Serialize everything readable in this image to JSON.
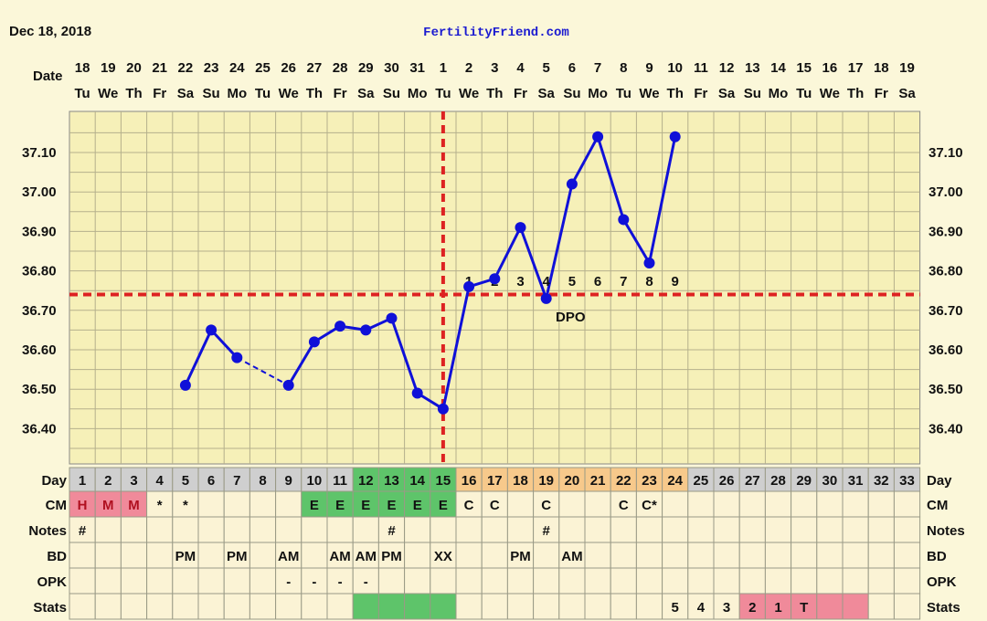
{
  "header": {
    "date": "Dec 18, 2018",
    "site": "FertilityFriend.com",
    "date_label": "Date"
  },
  "colors": {
    "page_bg": "#fbf7d9",
    "plot_bg": "#f6f0b8",
    "grid": "#b5b08c",
    "line": "#1010d8",
    "coverline": "#dd2222",
    "green": "#5ec46a",
    "pink": "#f08a9a",
    "orange": "#f7c98b",
    "gray": "#cfcfcf",
    "cell_bg": "#fbf3d5"
  },
  "chart_data": {
    "type": "line",
    "title": "",
    "xlabel": "Date",
    "ylabel": "",
    "ylim": [
      36.32,
      37.2
    ],
    "yticks": [
      "36.40",
      "36.50",
      "36.60",
      "36.70",
      "36.80",
      "36.90",
      "37.00",
      "37.10"
    ],
    "dates": [
      "18",
      "19",
      "20",
      "21",
      "22",
      "23",
      "24",
      "25",
      "26",
      "27",
      "28",
      "29",
      "30",
      "31",
      "1",
      "2",
      "3",
      "4",
      "5",
      "6",
      "7",
      "8",
      "9",
      "10",
      "11",
      "12",
      "13",
      "14",
      "15",
      "16",
      "17",
      "18",
      "19"
    ],
    "weekdays": [
      "Tu",
      "We",
      "Th",
      "Fr",
      "Sa",
      "Su",
      "Mo",
      "Tu",
      "We",
      "Th",
      "Fr",
      "Sa",
      "Su",
      "Mo",
      "Tu",
      "We",
      "Th",
      "Fr",
      "Sa",
      "Su",
      "Mo",
      "Tu",
      "We",
      "Th",
      "Fr",
      "Sa",
      "Su",
      "Mo",
      "Tu",
      "We",
      "Th",
      "Fr",
      "Sa"
    ],
    "temperatures": [
      null,
      null,
      null,
      null,
      36.51,
      36.65,
      36.58,
      null,
      36.51,
      36.62,
      36.66,
      36.65,
      36.68,
      36.49,
      36.45,
      36.76,
      36.78,
      36.91,
      36.73,
      37.02,
      37.14,
      36.93,
      36.82,
      37.14,
      null,
      null,
      null,
      null,
      null,
      null,
      null,
      null,
      null
    ],
    "coverline": 36.74,
    "ovulation_day_index": 14,
    "dpo_labels": [
      "1",
      "2",
      "3",
      "4",
      "5",
      "6",
      "7",
      "8",
      "9"
    ],
    "dpo_start_index": 15,
    "dpo_text": "DPO",
    "grid": true,
    "rows": [
      {
        "label": "Day",
        "cells": [
          "1",
          "2",
          "3",
          "4",
          "5",
          "6",
          "7",
          "8",
          "9",
          "10",
          "11",
          "12",
          "13",
          "14",
          "15",
          "16",
          "17",
          "18",
          "19",
          "20",
          "21",
          "22",
          "23",
          "24",
          "25",
          "26",
          "27",
          "28",
          "29",
          "30",
          "31",
          "32",
          "33"
        ]
      },
      {
        "label": "CM",
        "cells": [
          "H",
          "M",
          "M",
          "*",
          "*",
          "",
          "",
          "",
          "",
          "E",
          "E",
          "E",
          "E",
          "E",
          "E",
          "C",
          "C",
          "",
          "C",
          "",
          "",
          "C",
          "C*",
          "",
          "",
          "",
          "",
          "",
          "",
          "",
          "",
          "",
          ""
        ]
      },
      {
        "label": "Notes",
        "cells": [
          "#",
          "",
          "",
          "",
          "",
          "",
          "",
          "",
          "",
          "",
          "",
          "",
          "#",
          "",
          "",
          "",
          "",
          "",
          "#",
          "",
          "",
          "",
          "",
          "",
          "",
          "",
          "",
          "",
          "",
          "",
          "",
          "",
          ""
        ]
      },
      {
        "label": "BD",
        "cells": [
          "",
          "",
          "",
          "",
          "PM",
          "",
          "PM",
          "",
          "AM",
          "",
          "AM",
          "AM",
          "PM",
          "",
          "XX",
          "",
          "",
          "PM",
          "",
          "AM",
          "",
          "",
          "",
          "",
          "",
          "",
          "",
          "",
          "",
          "",
          "",
          "",
          ""
        ]
      },
      {
        "label": "OPK",
        "cells": [
          "",
          "",
          "",
          "",
          "",
          "",
          "",
          "",
          "-",
          "-",
          "-",
          "-",
          "",
          "",
          "",
          "",
          "",
          "",
          "",
          "",
          "",
          "",
          "",
          "",
          "",
          "",
          "",
          "",
          "",
          "",
          "",
          "",
          ""
        ]
      },
      {
        "label": "Stats",
        "cells": [
          "",
          "",
          "",
          "",
          "",
          "",
          "",
          "",
          "",
          "",
          "",
          "",
          "",
          "",
          "",
          "",
          "",
          "",
          "",
          "",
          "",
          "",
          "",
          "5",
          "4",
          "3",
          "2",
          "1",
          "T",
          "",
          "",
          "",
          ""
        ]
      }
    ]
  }
}
